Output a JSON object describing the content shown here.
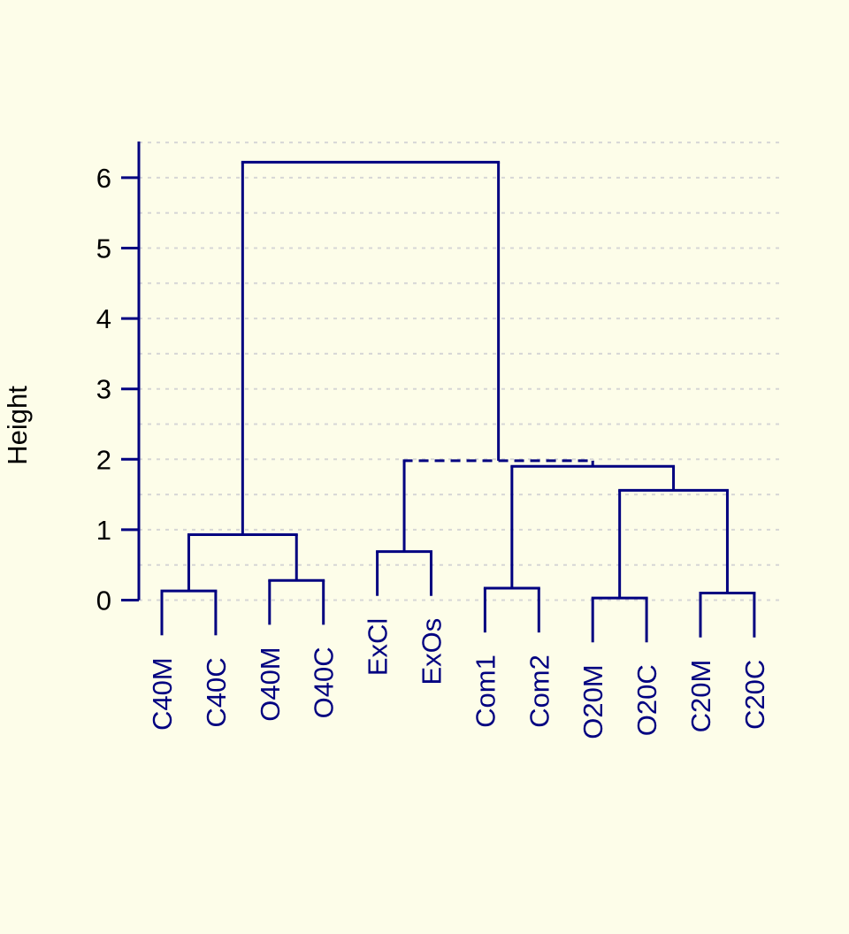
{
  "chart_data": {
    "type": "dendrogram",
    "title": "",
    "ylabel": "Height",
    "xlabel": "",
    "ylim": [
      0,
      6.5
    ],
    "yticks": [
      0,
      1,
      2,
      3,
      4,
      5,
      6
    ],
    "grid": {
      "on": true,
      "from": 0,
      "to": 6.5,
      "step": 0.5,
      "style": "dotted"
    },
    "legend": null,
    "leaves": [
      "C40M",
      "C40C",
      "O40M",
      "O40C",
      "ExCl",
      "ExOs",
      "Com1",
      "Com2",
      "O20M",
      "O20C",
      "C20M",
      "C20C"
    ],
    "merges": [
      {
        "id": "n1",
        "children": [
          "leaf:0",
          "leaf:1"
        ],
        "height": 0.13,
        "style": "solid"
      },
      {
        "id": "n2",
        "children": [
          "leaf:2",
          "leaf:3"
        ],
        "height": 0.28,
        "style": "solid"
      },
      {
        "id": "n3",
        "children": [
          "leaf:4",
          "leaf:5"
        ],
        "height": 0.69,
        "style": "solid"
      },
      {
        "id": "n4",
        "children": [
          "leaf:6",
          "leaf:7"
        ],
        "height": 0.17,
        "style": "solid"
      },
      {
        "id": "n5",
        "children": [
          "leaf:8",
          "leaf:9"
        ],
        "height": 0.03,
        "style": "solid"
      },
      {
        "id": "n6",
        "children": [
          "leaf:10",
          "leaf:11"
        ],
        "height": 0.1,
        "style": "solid"
      },
      {
        "id": "n7",
        "children": [
          "n1",
          "n2"
        ],
        "height": 0.93,
        "style": "solid"
      },
      {
        "id": "n8",
        "children": [
          "n5",
          "n6"
        ],
        "height": 1.56,
        "style": "solid"
      },
      {
        "id": "n9",
        "children": [
          "n4",
          "n8"
        ],
        "height": 1.9,
        "style": "solid"
      },
      {
        "id": "n10",
        "children": [
          "n3",
          "n9"
        ],
        "height": 1.98,
        "style": "dashed"
      },
      {
        "id": "n11",
        "children": [
          "n7",
          "n10"
        ],
        "height": 6.22,
        "style": "solid"
      }
    ],
    "hang": 0.63,
    "colors": {
      "background": "#FDFDE9",
      "line": "#000080",
      "leaf_label": "#000080",
      "axis_text": "#000000",
      "grid": "#D6D6D6"
    }
  }
}
